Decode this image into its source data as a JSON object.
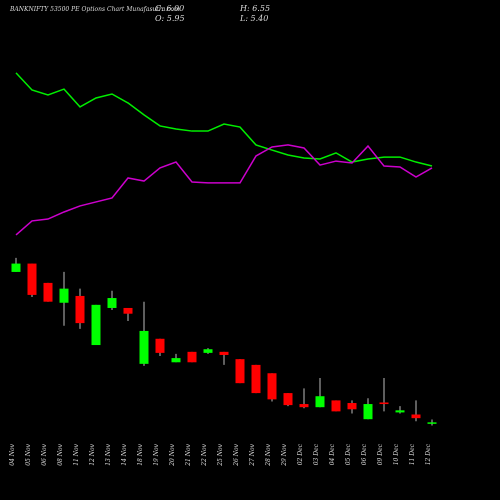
{
  "chart_data": {
    "type": "candlestick",
    "title": "BANKNIFTY 53500 PE Options Chart Munafasutra.com",
    "info_labels": [
      "C: 6.00",
      "H: 6.55",
      "O: 5.95",
      "L: 5.40"
    ],
    "categories": [
      "04 Nov",
      "05 Nov",
      "06 Nov",
      "08 Nov",
      "11 Nov",
      "12 Nov",
      "13 Nov",
      "14 Nov",
      "18 Nov",
      "19 Nov",
      "20 Nov",
      "21 Nov",
      "22 Nov",
      "25 Nov",
      "26 Nov",
      "27 Nov",
      "28 Nov",
      "29 Nov",
      "02 Dec",
      "03 Dec",
      "04 Dec",
      "05 Dec",
      "06 Dec",
      "09 Dec",
      "10 Dec",
      "11 Dec",
      "12 Dec"
    ],
    "open": [
      34.8,
      36.4,
      32.7,
      28.9,
      30.2,
      20.8,
      27.9,
      27.9,
      17.2,
      22.0,
      17.5,
      19.5,
      19.3,
      19.5,
      18.1,
      17.0,
      15.4,
      11.6,
      9.5,
      8.9,
      10.2,
      9.7,
      6.6,
      9.8,
      7.9,
      7.5,
      5.95
    ],
    "high": [
      37.5,
      36.4,
      32.7,
      34.8,
      31.6,
      28.5,
      31.2,
      27.9,
      29.1,
      22.0,
      19.1,
      19.5,
      20.2,
      19.5,
      18.1,
      17.0,
      15.4,
      11.6,
      12.5,
      14.5,
      10.2,
      10.2,
      10.6,
      14.5,
      9.1,
      10.2,
      6.55
    ],
    "low": [
      34.8,
      30.0,
      29.1,
      24.5,
      23.9,
      20.8,
      27.5,
      25.4,
      16.8,
      18.7,
      17.5,
      17.5,
      19.1,
      17.0,
      13.5,
      11.6,
      10.0,
      9.1,
      8.7,
      8.9,
      8.1,
      7.7,
      6.6,
      8.1,
      7.7,
      6.2,
      5.4
    ],
    "close": [
      36.4,
      30.4,
      29.1,
      31.6,
      25.0,
      28.5,
      29.8,
      26.8,
      23.5,
      19.3,
      18.3,
      17.5,
      20.0,
      18.9,
      13.5,
      11.6,
      10.4,
      9.3,
      8.9,
      11.0,
      8.1,
      8.5,
      9.5,
      9.5,
      8.3,
      6.8,
      6.0
    ],
    "up_color": "#00ff00",
    "down_color": "#ff0000",
    "ylim": [
      3,
      39
    ],
    "y2lim": [
      0,
      100
    ],
    "series": [
      {
        "color": "#00ee00",
        "axis": "y2",
        "values": [
          93.2,
          84.2,
          81.6,
          84.7,
          75.3,
          80,
          82.1,
          77.4,
          71.1,
          65.3,
          63.7,
          62.6,
          62.6,
          66.3,
          64.7,
          55.3,
          52.6,
          50,
          48.4,
          47.9,
          51.1,
          46.3,
          47.9,
          48.9,
          48.9,
          46.3,
          44.2
        ]
      },
      {
        "color": "#cc00cc",
        "axis": "y2",
        "values": [
          7.9,
          15.3,
          16.3,
          20,
          23.2,
          25.3,
          27.4,
          37.9,
          36.3,
          43.2,
          46.3,
          35.8,
          35.3,
          35.3,
          35.3,
          49.5,
          54.2,
          55.3,
          53.7,
          44.7,
          46.8,
          45.8,
          54.7,
          44.2,
          43.7,
          38.4,
          43.2
        ]
      }
    ]
  }
}
